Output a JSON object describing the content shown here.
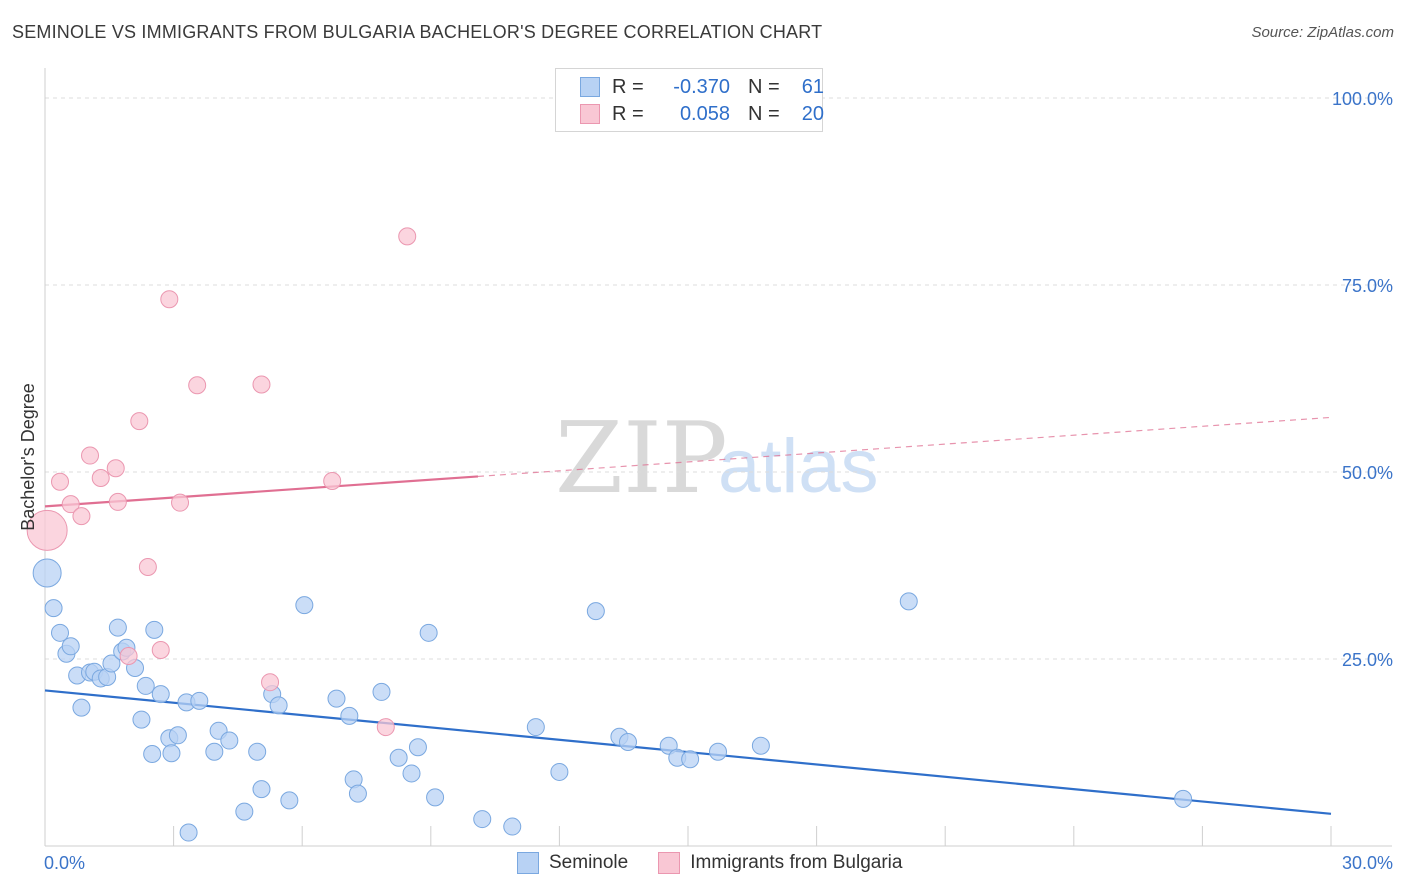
{
  "title": "SEMINOLE VS IMMIGRANTS FROM BULGARIA BACHELOR'S DEGREE CORRELATION CHART",
  "source": "Source: ZipAtlas.com",
  "watermark": {
    "zip": "ZIP",
    "atlas": "atlas"
  },
  "legend": {
    "series1": {
      "r_label": "R =",
      "r_value": "-0.370",
      "n_label": "N =",
      "n_value": "61"
    },
    "series2": {
      "r_label": "R =",
      "r_value": "0.058",
      "n_label": "N =",
      "n_value": "20"
    }
  },
  "bottom_legend": {
    "series1": "Seminole",
    "series2": "Immigrants from Bulgaria"
  },
  "colors": {
    "blue_fill": "#b8d2f4",
    "blue_stroke": "#7aa8e0",
    "blue_line": "#2f6fca",
    "pink_fill": "#f9c7d4",
    "pink_stroke": "#eb97b0",
    "pink_line": "#e06f92",
    "axis_text": "#3b74c9",
    "grid": "#dcdcdc"
  },
  "chart_data": {
    "type": "scatter",
    "title": "SEMINOLE VS IMMIGRANTS FROM BULGARIA BACHELOR'S DEGREE CORRELATION CHART",
    "xlabel": "",
    "ylabel": "Bachelor's Degree",
    "xlim": [
      0,
      30
    ],
    "ylim": [
      0,
      100
    ],
    "x_tick_labels": [
      {
        "value": 0,
        "label": "0.0%"
      },
      {
        "value": 30,
        "label": "30.0%"
      }
    ],
    "y_tick_labels": [
      {
        "value": 25,
        "label": "25.0%"
      },
      {
        "value": 50,
        "label": "50.0%"
      },
      {
        "value": 75,
        "label": "75.0%"
      },
      {
        "value": 100,
        "label": "100.0%"
      }
    ],
    "series": [
      {
        "name": "Seminole",
        "color": "#b8d2f4",
        "r": -0.37,
        "n": 61,
        "trend": {
          "x": [
            0,
            30
          ],
          "y": [
            20.8,
            4.3
          ],
          "solid_to": 30
        },
        "points": [
          [
            0.05,
            36.5,
            3
          ],
          [
            0.2,
            31.8,
            1
          ],
          [
            0.35,
            28.5,
            1
          ],
          [
            0.5,
            25.7,
            1
          ],
          [
            0.6,
            26.7,
            1
          ],
          [
            0.75,
            22.8,
            1
          ],
          [
            0.85,
            18.5,
            1
          ],
          [
            1.05,
            23.2,
            1
          ],
          [
            1.15,
            23.3,
            1
          ],
          [
            1.3,
            22.4,
            1
          ],
          [
            1.45,
            22.6,
            1
          ],
          [
            1.55,
            24.4,
            1
          ],
          [
            1.7,
            29.2,
            1
          ],
          [
            1.8,
            26.0,
            1
          ],
          [
            1.9,
            26.5,
            1
          ],
          [
            2.1,
            23.8,
            1
          ],
          [
            2.25,
            16.9,
            1
          ],
          [
            2.35,
            21.4,
            1
          ],
          [
            2.5,
            12.3,
            1
          ],
          [
            2.55,
            28.9,
            1
          ],
          [
            2.7,
            20.3,
            1
          ],
          [
            2.9,
            14.4,
            1
          ],
          [
            2.95,
            12.4,
            1
          ],
          [
            3.1,
            14.8,
            1
          ],
          [
            3.3,
            19.2,
            1
          ],
          [
            3.35,
            1.8,
            1
          ],
          [
            3.6,
            19.4,
            1
          ],
          [
            3.95,
            12.6,
            1
          ],
          [
            4.05,
            15.4,
            1
          ],
          [
            4.3,
            14.1,
            1
          ],
          [
            4.65,
            4.6,
            1
          ],
          [
            4.95,
            12.6,
            1
          ],
          [
            5.05,
            7.6,
            1
          ],
          [
            5.3,
            20.3,
            1
          ],
          [
            5.45,
            18.8,
            1
          ],
          [
            5.7,
            6.1,
            1
          ],
          [
            6.05,
            32.2,
            1
          ],
          [
            6.8,
            19.7,
            1
          ],
          [
            7.1,
            17.4,
            1
          ],
          [
            7.2,
            8.9,
            1
          ],
          [
            7.3,
            7.0,
            1
          ],
          [
            7.85,
            20.6,
            1
          ],
          [
            8.25,
            11.8,
            1
          ],
          [
            8.55,
            9.7,
            1
          ],
          [
            8.7,
            13.2,
            1
          ],
          [
            8.95,
            28.5,
            1
          ],
          [
            9.1,
            6.5,
            1
          ],
          [
            10.2,
            3.6,
            1
          ],
          [
            10.9,
            2.6,
            1
          ],
          [
            11.45,
            15.9,
            1
          ],
          [
            12.0,
            9.9,
            1
          ],
          [
            12.85,
            31.4,
            1
          ],
          [
            13.4,
            14.6,
            1
          ],
          [
            13.6,
            13.9,
            1
          ],
          [
            14.55,
            13.4,
            1
          ],
          [
            14.75,
            11.8,
            1
          ],
          [
            15.05,
            11.6,
            1
          ],
          [
            15.7,
            12.6,
            1
          ],
          [
            16.7,
            13.4,
            1
          ],
          [
            20.15,
            32.7,
            1
          ],
          [
            26.55,
            6.3,
            1
          ]
        ]
      },
      {
        "name": "Immigrants from Bulgaria",
        "color": "#f9c7d4",
        "r": 0.058,
        "n": 20,
        "trend": {
          "x": [
            0,
            30
          ],
          "y": [
            45.4,
            57.3
          ],
          "solid_to": 10.1
        },
        "points": [
          [
            0.05,
            42.2,
            5
          ],
          [
            0.35,
            48.7,
            1
          ],
          [
            0.6,
            45.7,
            1
          ],
          [
            0.85,
            44.1,
            1
          ],
          [
            1.05,
            52.2,
            1
          ],
          [
            1.3,
            49.2,
            1
          ],
          [
            1.65,
            50.5,
            1
          ],
          [
            1.7,
            46.0,
            1
          ],
          [
            1.95,
            25.4,
            1
          ],
          [
            2.2,
            56.8,
            1
          ],
          [
            2.4,
            37.3,
            1
          ],
          [
            2.7,
            26.2,
            1
          ],
          [
            2.9,
            73.1,
            1
          ],
          [
            3.15,
            45.9,
            1
          ],
          [
            3.55,
            61.6,
            1
          ],
          [
            5.05,
            61.7,
            1
          ],
          [
            5.25,
            21.9,
            1
          ],
          [
            6.7,
            48.8,
            1
          ],
          [
            7.95,
            15.9,
            1
          ],
          [
            8.45,
            81.5,
            1
          ]
        ]
      }
    ]
  }
}
